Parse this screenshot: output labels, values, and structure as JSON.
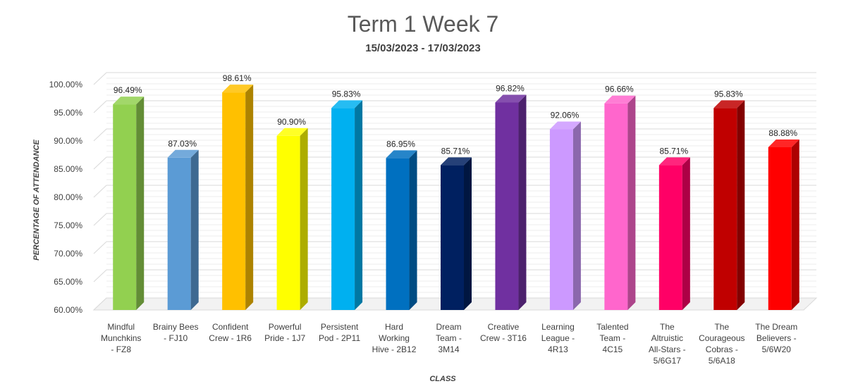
{
  "chart_data": {
    "type": "bar",
    "title": "Term 1 Week 7",
    "subtitle": "15/03/2023 - 17/03/2023",
    "xlabel": "CLASS",
    "ylabel": "PERCENTAGE OF ATTENDANCE",
    "ylim": [
      60,
      100
    ],
    "yticks": [
      "60.00%",
      "65.00%",
      "70.00%",
      "75.00%",
      "80.00%",
      "85.00%",
      "90.00%",
      "95.00%",
      "100.00%"
    ],
    "grid": true,
    "categories": [
      [
        "Mindful",
        "Munchkins",
        "- FZ8"
      ],
      [
        "Brainy Bees",
        "- FJ10"
      ],
      [
        "Confident",
        "Crew - 1R6"
      ],
      [
        "Powerful",
        "Pride - 1J7"
      ],
      [
        "Persistent",
        "Pod - 2P11"
      ],
      [
        "Hard",
        "Working",
        "Hive - 2B12"
      ],
      [
        "Dream",
        "Team -",
        "3M14"
      ],
      [
        "Creative",
        "Crew - 3T16"
      ],
      [
        "Learning",
        "League -",
        "4R13"
      ],
      [
        "Talented",
        "Team -",
        "4C15"
      ],
      [
        "The",
        "Altruistic",
        "All-Stars -",
        "5/6G17"
      ],
      [
        "The",
        "Courageous",
        "Cobras -",
        "5/6A18"
      ],
      [
        "The Dream",
        "Believers -",
        "5/6W20"
      ]
    ],
    "values": [
      96.49,
      87.03,
      98.61,
      90.9,
      95.83,
      86.95,
      85.71,
      96.82,
      92.06,
      96.66,
      85.71,
      95.83,
      88.88
    ],
    "data_labels": [
      "96.49%",
      "87.03%",
      "98.61%",
      "90.90%",
      "95.83%",
      "86.95%",
      "85.71%",
      "96.82%",
      "92.06%",
      "96.66%",
      "85.71%",
      "95.83%",
      "88.88%"
    ],
    "colors": [
      "#92d050",
      "#5b9bd5",
      "#ffc000",
      "#ffff00",
      "#00b0f0",
      "#0070c0",
      "#002060",
      "#7030a0",
      "#cc99ff",
      "#ff66cc",
      "#ff0066",
      "#c00000",
      "#ff0000"
    ]
  }
}
